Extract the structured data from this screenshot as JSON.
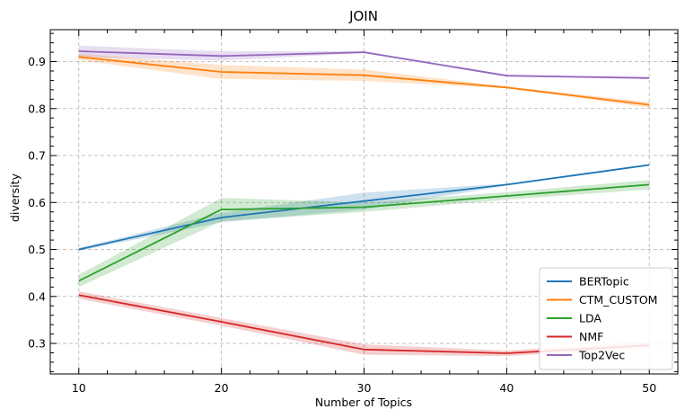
{
  "chart_data": {
    "type": "line",
    "title": "JOIN",
    "xlabel": "Number of Topics",
    "ylabel": "diversity",
    "x": [
      10,
      20,
      30,
      40,
      50
    ],
    "xlim": [
      8,
      52
    ],
    "ylim": [
      0.235,
      0.968
    ],
    "xticks": [
      "10",
      "20",
      "30",
      "40",
      "50"
    ],
    "yticks": [
      "0.3",
      "0.4",
      "0.5",
      "0.6",
      "0.7",
      "0.8",
      "0.9"
    ],
    "grid": true,
    "legend_position": "lower-right",
    "series": [
      {
        "name": "BERTopic",
        "color": "#1f77b4",
        "values": [
          0.5,
          0.568,
          0.603,
          0.638,
          0.68
        ],
        "lower": [
          0.497,
          0.558,
          0.585,
          0.636,
          0.678
        ],
        "upper": [
          0.503,
          0.578,
          0.621,
          0.64,
          0.682
        ]
      },
      {
        "name": "CTM_CUSTOM",
        "color": "#ff7f0e",
        "values": [
          0.91,
          0.878,
          0.871,
          0.845,
          0.808
        ],
        "lower": [
          0.903,
          0.863,
          0.859,
          0.843,
          0.802
        ],
        "upper": [
          0.917,
          0.893,
          0.883,
          0.847,
          0.814
        ]
      },
      {
        "name": "LDA",
        "color": "#2ca02c",
        "values": [
          0.433,
          0.585,
          0.59,
          0.614,
          0.638
        ],
        "lower": [
          0.42,
          0.56,
          0.58,
          0.606,
          0.628
        ],
        "upper": [
          0.446,
          0.61,
          0.6,
          0.622,
          0.648
        ]
      },
      {
        "name": "NMF",
        "color": "#d62728",
        "values": [
          0.403,
          0.346,
          0.287,
          0.279,
          0.296
        ],
        "lower": [
          0.395,
          0.338,
          0.276,
          0.273,
          0.29
        ],
        "upper": [
          0.411,
          0.354,
          0.298,
          0.285,
          0.302
        ]
      },
      {
        "name": "Top2Vec",
        "color": "#9467bd",
        "values": [
          0.922,
          0.912,
          0.92,
          0.87,
          0.865
        ],
        "lower": [
          0.91,
          0.902,
          0.918,
          0.868,
          0.863
        ],
        "upper": [
          0.934,
          0.922,
          0.922,
          0.872,
          0.867
        ]
      }
    ]
  }
}
